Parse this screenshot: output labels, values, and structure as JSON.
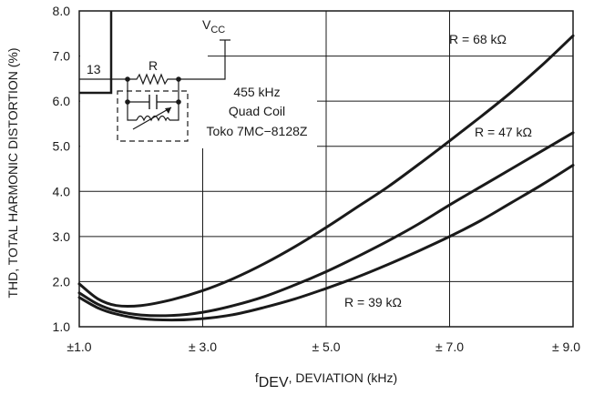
{
  "chart_data": {
    "type": "line",
    "title": "",
    "xlabel": {
      "prefix": "f",
      "subscript": "DEV",
      "suffix": ", DEVIATION (kHz)"
    },
    "ylabel": "THD, TOTAL HARMONIC DISTORTION (%)",
    "xlim": [
      1.0,
      9.0
    ],
    "ylim": [
      1.0,
      8.0
    ],
    "x_ticks": [
      1.0,
      3.0,
      5.0,
      7.0,
      9.0
    ],
    "x_tick_labels": [
      "±1.0",
      "± 3.0",
      "± 5.0",
      "± 7.0",
      "± 9.0"
    ],
    "y_ticks": [
      1.0,
      2.0,
      3.0,
      4.0,
      5.0,
      6.0,
      7.0,
      8.0
    ],
    "y_tick_labels": [
      "1.0",
      "2.0",
      "3.0",
      "4.0",
      "5.0",
      "6.0",
      "7.0",
      "8.0"
    ],
    "grid": true,
    "series": [
      {
        "name": "R = 68 kΩ",
        "x": [
          1.0,
          1.3,
          1.6,
          2.0,
          2.5,
          3.0,
          3.5,
          4.0,
          4.5,
          5.0,
          5.5,
          6.0,
          6.5,
          7.0,
          7.5,
          8.0,
          8.5,
          9.0
        ],
        "values": [
          1.95,
          1.62,
          1.47,
          1.47,
          1.6,
          1.8,
          2.07,
          2.4,
          2.78,
          3.2,
          3.65,
          4.1,
          4.6,
          5.12,
          5.65,
          6.2,
          6.8,
          7.45
        ]
      },
      {
        "name": "R = 47 kΩ",
        "x": [
          1.0,
          1.3,
          1.6,
          2.0,
          2.5,
          3.0,
          3.5,
          4.0,
          4.5,
          5.0,
          5.5,
          6.0,
          6.5,
          7.0,
          7.5,
          8.0,
          8.5,
          9.0
        ],
        "values": [
          1.75,
          1.5,
          1.35,
          1.26,
          1.25,
          1.32,
          1.47,
          1.67,
          1.93,
          2.22,
          2.55,
          2.9,
          3.28,
          3.7,
          4.1,
          4.5,
          4.9,
          5.3
        ]
      },
      {
        "name": "R = 39 kΩ",
        "x": [
          1.0,
          1.3,
          1.6,
          2.0,
          2.5,
          3.0,
          3.5,
          4.0,
          4.5,
          5.0,
          5.5,
          6.0,
          6.5,
          7.0,
          7.5,
          8.0,
          8.5,
          9.0
        ],
        "values": [
          1.65,
          1.42,
          1.28,
          1.18,
          1.15,
          1.18,
          1.27,
          1.43,
          1.62,
          1.85,
          2.1,
          2.38,
          2.68,
          3.0,
          3.35,
          3.75,
          4.15,
          4.58
        ]
      }
    ],
    "annotations": {
      "series_labels": [
        "R = 68 kΩ",
        "R = 47 kΩ",
        "R = 39 kΩ"
      ],
      "circuit": {
        "supply": {
          "main": "V",
          "sub": "CC"
        },
        "pin": "13",
        "resistor": "R",
        "lines": [
          "455 kHz",
          "Quad Coil",
          "Toko 7MC−8128Z"
        ]
      }
    }
  }
}
